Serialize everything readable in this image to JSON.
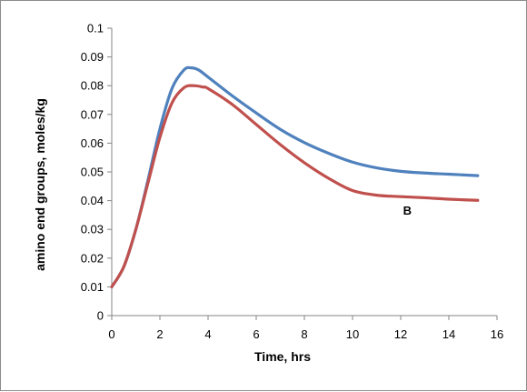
{
  "chart_data": {
    "type": "line",
    "title": "",
    "xlabel": "Time, hrs",
    "ylabel": "amino end groups, moles/kg",
    "xlim": [
      0,
      16
    ],
    "ylim": [
      0,
      0.1
    ],
    "x_ticks": [
      "0",
      "2",
      "4",
      "6",
      "8",
      "10",
      "12",
      "14",
      "16"
    ],
    "y_ticks": [
      "0",
      "0.01",
      "0.02",
      "0.03",
      "0.04",
      "0.05",
      "0.06",
      "0.07",
      "0.08",
      "0.09",
      "0.1"
    ],
    "grid": false,
    "legend": false,
    "series": [
      {
        "color": "#4f81bd",
        "x": [
          0,
          0.5,
          1,
          1.5,
          2,
          2.5,
          3,
          3.3,
          3.6,
          4,
          5,
          6,
          7,
          8,
          9,
          10,
          11,
          12,
          13,
          14,
          15.2
        ],
        "y": [
          0.01,
          0.017,
          0.03,
          0.047,
          0.065,
          0.079,
          0.0855,
          0.0862,
          0.0855,
          0.083,
          0.0765,
          0.0705,
          0.0648,
          0.0602,
          0.0565,
          0.0534,
          0.0514,
          0.0502,
          0.0496,
          0.0492,
          0.0487
        ]
      },
      {
        "color": "#c0504d",
        "x": [
          0,
          0.5,
          1,
          1.5,
          2,
          2.5,
          3,
          3.4,
          3.8,
          4,
          5,
          6,
          7,
          8,
          9,
          10,
          11,
          12,
          13,
          14,
          15.2
        ],
        "y": [
          0.01,
          0.017,
          0.03,
          0.046,
          0.062,
          0.074,
          0.0793,
          0.08,
          0.0795,
          0.079,
          0.0735,
          0.0665,
          0.0595,
          0.0532,
          0.0478,
          0.0435,
          0.0419,
          0.0414,
          0.041,
          0.0405,
          0.0401
        ]
      }
    ],
    "annotations": [
      {
        "text": "B",
        "x": 12.1,
        "y": 0.0352
      }
    ]
  }
}
